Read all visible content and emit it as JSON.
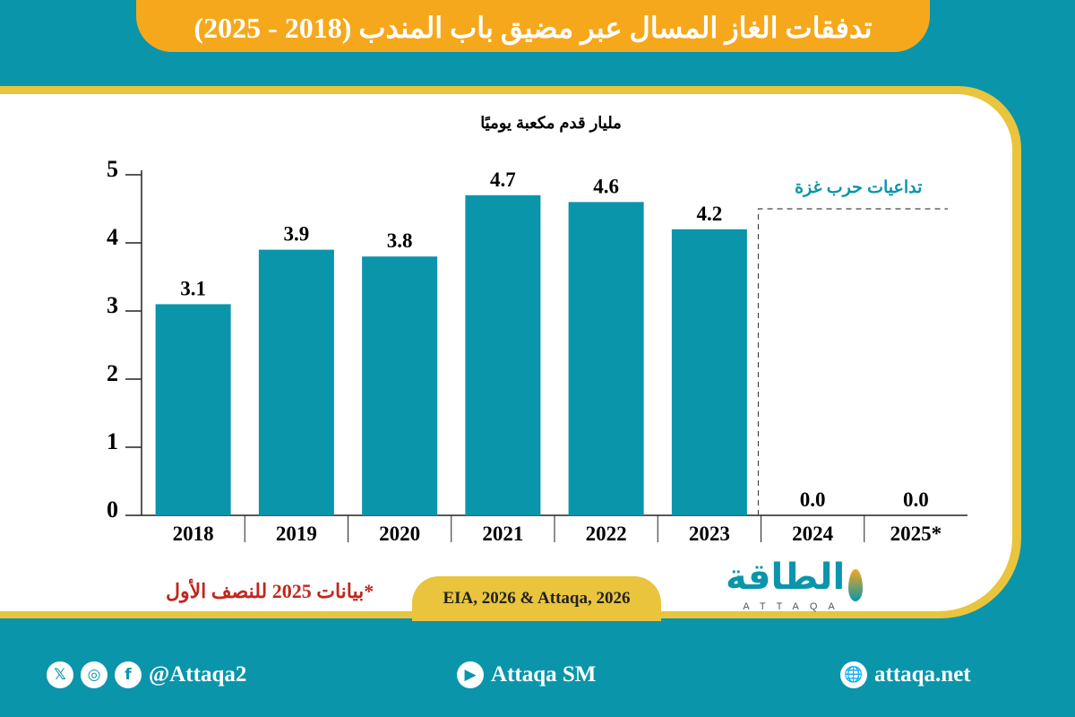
{
  "title": "تدفقات الغاز المسال عبر مضيق باب المندب (2018 - 2025)",
  "chart_data": {
    "type": "bar",
    "ylabel": "مليار قدم مكعبة يوميًا",
    "categories": [
      "2018",
      "2019",
      "2020",
      "2021",
      "2022",
      "2023",
      "2024",
      "2025*"
    ],
    "values": [
      3.1,
      3.9,
      3.8,
      4.7,
      4.6,
      4.2,
      0.0,
      0.0
    ],
    "value_labels": [
      "3.1",
      "3.9",
      "3.8",
      "4.7",
      "4.6",
      "4.2",
      "0.0",
      "0.0"
    ],
    "ylim": [
      0,
      5
    ],
    "yticks": [
      "0",
      "1",
      "2",
      "3",
      "4",
      "5"
    ],
    "grid": false,
    "annotation": "تداعيات حرب غزة",
    "bar_color": "#0a95ab"
  },
  "note": "*بيانات 2025 للنصف الأول",
  "source": "EIA, 2026 & Attaqa, 2026",
  "logo": {
    "ar": "الطاقة",
    "en": "ATTAQA"
  },
  "footer": {
    "social_handle": "@Attaqa2",
    "youtube": "Attaqa SM",
    "website": "attaqa.net"
  },
  "colors": {
    "teal": "#0a95ab",
    "orange": "#f6a81c",
    "gold": "#e9c43c",
    "note_red": "#c0271d"
  }
}
